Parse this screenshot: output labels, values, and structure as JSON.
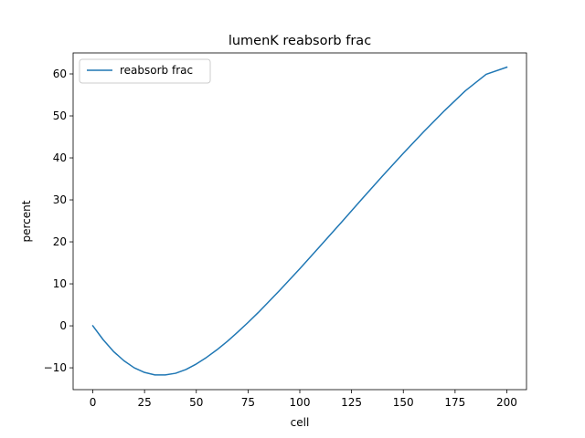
{
  "chart_data": {
    "type": "line",
    "title": "lumenK reabsorb frac",
    "xlabel": "cell",
    "ylabel": "percent",
    "xlim": [
      -9.5,
      209.5
    ],
    "ylim": [
      -15.2,
      65.0
    ],
    "xticks": [
      0,
      25,
      50,
      75,
      100,
      125,
      150,
      175,
      200
    ],
    "yticks": [
      -10,
      0,
      10,
      20,
      30,
      40,
      50,
      60
    ],
    "grid": false,
    "legend_position": "top-left",
    "series": [
      {
        "name": "reabsorb frac",
        "color": "#1f77b4",
        "x": [
          0,
          5,
          10,
          15,
          20,
          25,
          30,
          35,
          40,
          45,
          50,
          55,
          60,
          65,
          70,
          75,
          80,
          90,
          100,
          110,
          120,
          130,
          140,
          150,
          160,
          170,
          180,
          190,
          200
        ],
        "y": [
          0.0,
          -3.3,
          -6.1,
          -8.3,
          -10.0,
          -11.1,
          -11.7,
          -11.7,
          -11.3,
          -10.4,
          -9.1,
          -7.5,
          -5.7,
          -3.7,
          -1.5,
          0.8,
          3.2,
          8.3,
          13.6,
          19.1,
          24.6,
          30.2,
          35.7,
          41.1,
          46.3,
          51.3,
          56.0,
          59.9,
          61.6
        ]
      }
    ]
  }
}
